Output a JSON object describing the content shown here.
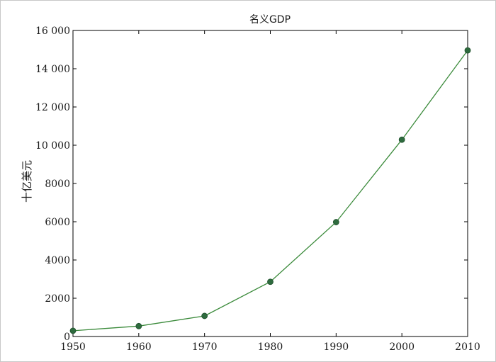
{
  "chart_data": {
    "type": "line",
    "title": "名义GDP",
    "xlabel": "",
    "ylabel": "十亿美元",
    "x": [
      1950,
      1960,
      1970,
      1980,
      1990,
      2000,
      2010
    ],
    "xlim": [
      1950,
      2010
    ],
    "ylim": [
      0,
      16000
    ],
    "x_ticks": [
      "1950",
      "1960",
      "1970",
      "1980",
      "1990",
      "2000",
      "2010"
    ],
    "y_tick_values": [
      0,
      2000,
      4000,
      6000,
      8000,
      10000,
      12000,
      14000,
      16000
    ],
    "y_ticks": [
      "0",
      "2000",
      "4000",
      "6000",
      "8000",
      "10 000",
      "12 000",
      "14 000",
      "16 000"
    ],
    "series": [
      {
        "values": [
          300.2,
          543.3,
          1075.9,
          2862.5,
          5979.6,
          10289.7,
          14958.3
        ],
        "color": "#3a8a3a",
        "marker_color": "#2e6b3e",
        "marker": "circle"
      }
    ],
    "grid": false,
    "legend": "none"
  }
}
